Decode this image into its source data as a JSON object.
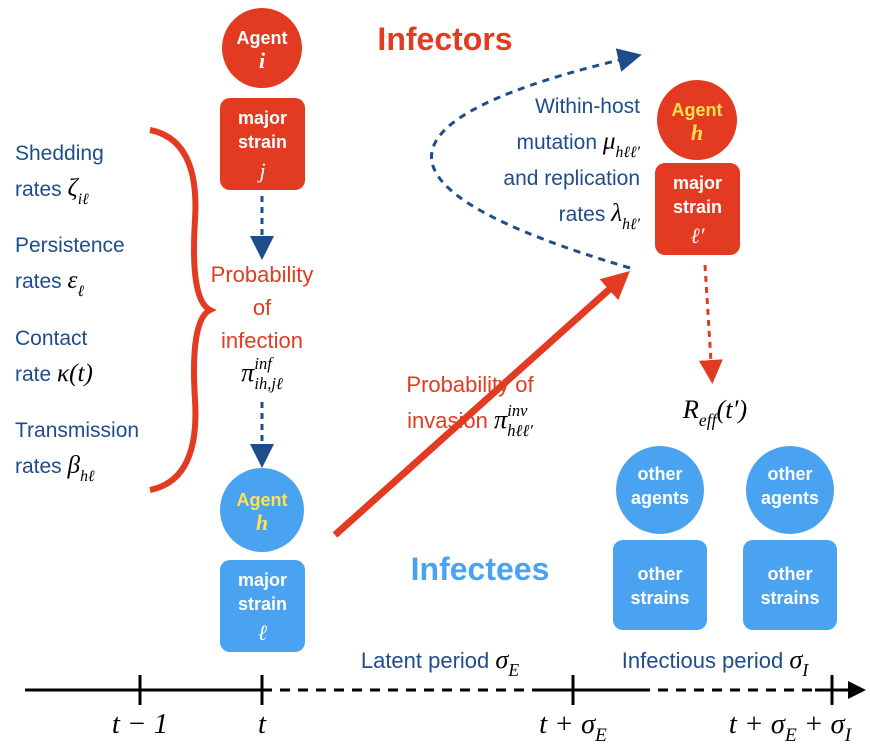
{
  "headings": {
    "infectors": "Infectors",
    "infectees": "Infectees"
  },
  "agents": [
    {
      "agent": "Agent",
      "id": "i",
      "strain": [
        "major",
        "strain"
      ],
      "strain_id": "j"
    },
    {
      "agent": "Agent",
      "id": "h",
      "strain": [
        "major",
        "strain"
      ],
      "strain_id": "ℓ′"
    },
    {
      "agent": "Agent",
      "id": "h",
      "strain": [
        "major",
        "strain"
      ],
      "strain_id": "ℓ"
    }
  ],
  "others": [
    {
      "agent": [
        "other",
        "agents"
      ],
      "strain": [
        "other",
        "strains"
      ]
    },
    {
      "agent": [
        "other",
        "agents"
      ],
      "strain": [
        "other",
        "strains"
      ]
    }
  ],
  "labels": {
    "shedding": [
      [
        {
          "text": "Shedding",
          "kind": "plain"
        }
      ],
      [
        {
          "text": "rates ",
          "kind": "plain"
        },
        {
          "text": "ζ",
          "kind": "math"
        },
        {
          "text": "iℓ",
          "kind": "sub"
        }
      ]
    ],
    "persistence": [
      [
        {
          "text": "Persistence",
          "kind": "plain"
        }
      ],
      [
        {
          "text": "rates ",
          "kind": "plain"
        },
        {
          "text": "ε",
          "kind": "math"
        },
        {
          "text": "ℓ",
          "kind": "sub"
        }
      ]
    ],
    "contact": [
      [
        {
          "text": "Contact",
          "kind": "plain"
        }
      ],
      [
        {
          "text": "rate ",
          "kind": "plain"
        },
        {
          "text": "κ(t)",
          "kind": "math"
        }
      ]
    ],
    "transmission": [
      [
        {
          "text": "Transmission",
          "kind": "plain"
        }
      ],
      [
        {
          "text": "rates ",
          "kind": "plain"
        },
        {
          "text": "β",
          "kind": "math"
        },
        {
          "text": "hℓ",
          "kind": "sub"
        }
      ]
    ],
    "infection": [
      [
        {
          "text": "Probability",
          "kind": "plain"
        }
      ],
      [
        {
          "text": "of",
          "kind": "plain"
        }
      ],
      [
        {
          "text": "infection",
          "kind": "plain"
        }
      ],
      [
        {
          "text": "π",
          "kind": "math"
        },
        {
          "text": "inf",
          "kind": "sup"
        },
        {
          "text": "ih,jℓ",
          "kind": "sub"
        }
      ]
    ],
    "invasion": [
      [
        {
          "text": "Probability of",
          "kind": "plain"
        }
      ],
      [
        {
          "text": "invasion ",
          "kind": "plain"
        },
        {
          "text": "π",
          "kind": "math"
        },
        {
          "text": "inv",
          "kind": "sup"
        },
        {
          "text": "hℓℓ′",
          "kind": "sub"
        }
      ]
    ],
    "withinhost": [
      [
        {
          "text": "Within-host",
          "kind": "plain"
        }
      ],
      [
        {
          "text": "mutation ",
          "kind": "plain"
        },
        {
          "text": "μ",
          "kind": "math"
        },
        {
          "text": "hℓℓ′",
          "kind": "sub"
        }
      ],
      [
        {
          "text": "and replication",
          "kind": "plain"
        }
      ],
      [
        {
          "text": "rates ",
          "kind": "plain"
        },
        {
          "text": "λ",
          "kind": "math"
        },
        {
          "text": "hℓ′",
          "kind": "sub"
        }
      ]
    ],
    "reff": [
      [
        {
          "text": "R",
          "kind": "math"
        },
        {
          "text": "eff",
          "kind": "subrm"
        },
        {
          "text": "(t′)",
          "kind": "math"
        }
      ]
    ],
    "latent": [
      [
        {
          "text": "Latent period ",
          "kind": "plain"
        },
        {
          "text": "σ",
          "kind": "math"
        },
        {
          "text": "E",
          "kind": "subrm"
        }
      ]
    ],
    "infectious": [
      [
        {
          "text": "Infectious period ",
          "kind": "plain"
        },
        {
          "text": "σ",
          "kind": "math"
        },
        {
          "text": "I",
          "kind": "subrm"
        }
      ]
    ]
  },
  "timeline": {
    "ticks": [
      [
        {
          "text": "t − 1",
          "kind": "math"
        }
      ],
      [
        {
          "text": "t",
          "kind": "math"
        }
      ],
      [
        {
          "text": "t + σ",
          "kind": "math"
        },
        {
          "text": "E",
          "kind": "subrm"
        }
      ],
      [
        {
          "text": "t + σ",
          "kind": "math"
        },
        {
          "text": "E",
          "kind": "subrm"
        },
        {
          "text": " + σ",
          "kind": "math"
        },
        {
          "text": "I",
          "kind": "subrm"
        }
      ]
    ]
  }
}
